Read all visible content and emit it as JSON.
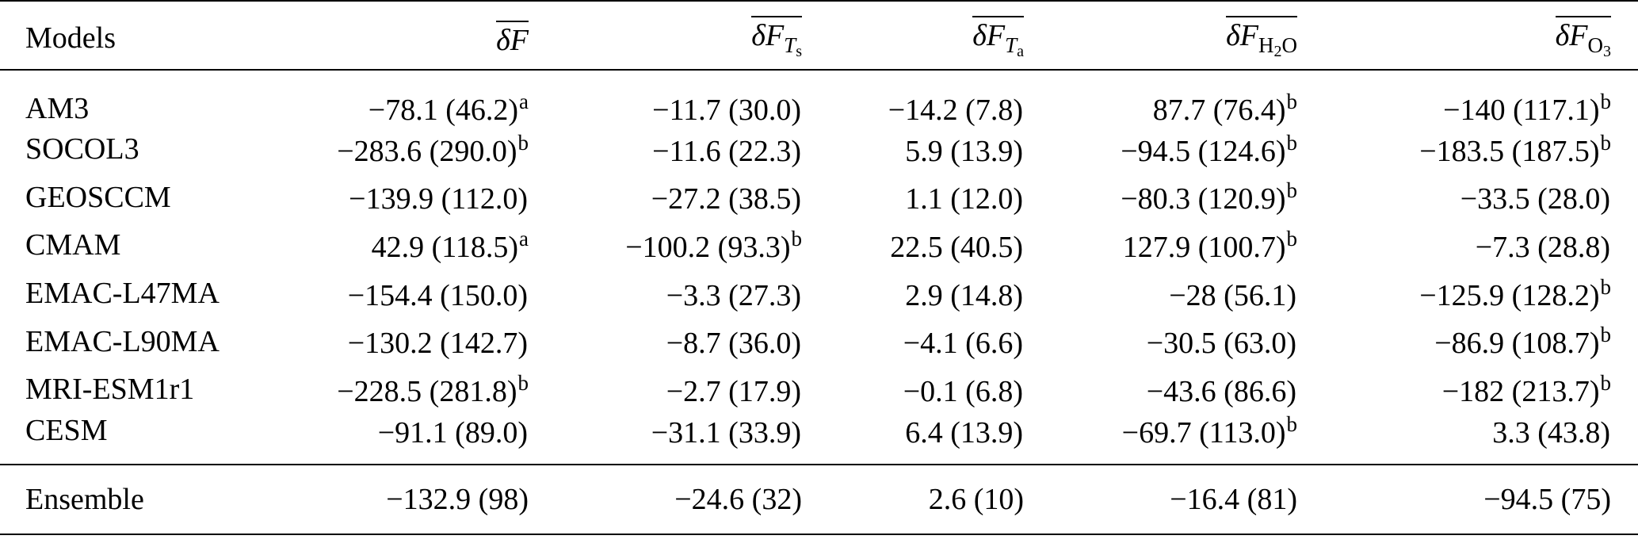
{
  "header": {
    "models_label": "Models",
    "col_F": {
      "delta": "δ",
      "var": "F",
      "sub": ""
    },
    "col_FTs": {
      "delta": "δ",
      "var": "F",
      "sub_var": "T",
      "sub": "s"
    },
    "col_FTa": {
      "delta": "δ",
      "var": "F",
      "sub_var": "T",
      "sub": "a"
    },
    "col_FH2O": {
      "delta": "δ",
      "var": "F",
      "sub": "H",
      "sub2": "2",
      "sub3": "O"
    },
    "col_FO3": {
      "delta": "δ",
      "var": "F",
      "sub": "O",
      "sub2": "3"
    }
  },
  "rows": [
    {
      "model": "AM3",
      "F": "−78.1 (46.2)",
      "F_sup": "a",
      "FTs": "−11.7 (30.0)",
      "FTs_sup": "",
      "FTa": "−14.2 (7.8)",
      "FTa_sup": "",
      "FH2O": "87.7 (76.4)",
      "FH2O_sup": "b",
      "FO3": "−140 (117.1)",
      "FO3_sup": "b"
    },
    {
      "model": "SOCOL3",
      "F": "−283.6 (290.0)",
      "F_sup": "b",
      "FTs": "−11.6 (22.3)",
      "FTs_sup": "",
      "FTa": "5.9 (13.9)",
      "FTa_sup": "",
      "FH2O": "−94.5 (124.6)",
      "FH2O_sup": "b",
      "FO3": "−183.5 (187.5)",
      "FO3_sup": "b"
    },
    {
      "model": "GEOSCCM",
      "F": "−139.9 (112.0)",
      "F_sup": "",
      "FTs": "−27.2 (38.5)",
      "FTs_sup": "",
      "FTa": "1.1 (12.0)",
      "FTa_sup": "",
      "FH2O": "−80.3 (120.9)",
      "FH2O_sup": "b",
      "FO3": "−33.5 (28.0)",
      "FO3_sup": ""
    },
    {
      "model": "CMAM",
      "F": "42.9 (118.5)",
      "F_sup": "a",
      "FTs": "−100.2 (93.3)",
      "FTs_sup": "b",
      "FTa": "22.5 (40.5)",
      "FTa_sup": "",
      "FH2O": "127.9 (100.7)",
      "FH2O_sup": "b",
      "FO3": "−7.3 (28.8)",
      "FO3_sup": ""
    },
    {
      "model": "EMAC-L47MA",
      "F": "−154.4 (150.0)",
      "F_sup": "",
      "FTs": "−3.3 (27.3)",
      "FTs_sup": "",
      "FTa": "2.9 (14.8)",
      "FTa_sup": "",
      "FH2O": "−28 (56.1)",
      "FH2O_sup": "",
      "FO3": "−125.9 (128.2)",
      "FO3_sup": "b"
    },
    {
      "model": "EMAC-L90MA",
      "F": "−130.2 (142.7)",
      "F_sup": "",
      "FTs": "−8.7 (36.0)",
      "FTs_sup": "",
      "FTa": "−4.1 (6.6)",
      "FTa_sup": "",
      "FH2O": "−30.5 (63.0)",
      "FH2O_sup": "",
      "FO3": "−86.9 (108.7)",
      "FO3_sup": "b"
    },
    {
      "model": "MRI-ESM1r1",
      "F": "−228.5 (281.8)",
      "F_sup": "b",
      "FTs": "−2.7 (17.9)",
      "FTs_sup": "",
      "FTa": "−0.1 (6.8)",
      "FTa_sup": "",
      "FH2O": "−43.6 (86.6)",
      "FH2O_sup": "",
      "FO3": "−182 (213.7)",
      "FO3_sup": "b"
    },
    {
      "model": "CESM",
      "F": "−91.1 (89.0)",
      "F_sup": "",
      "FTs": "−31.1 (33.9)",
      "FTs_sup": "",
      "FTa": "6.4 (13.9)",
      "FTa_sup": "",
      "FH2O": "−69.7 (113.0)",
      "FH2O_sup": "b",
      "FO3": "3.3 (43.8)",
      "FO3_sup": ""
    }
  ],
  "ensemble": {
    "model": "Ensemble",
    "F": "−132.9 (98)",
    "FTs": "−24.6 (32)",
    "FTa": "2.6 (10)",
    "FH2O": "−16.4 (81)",
    "FO3": "−94.5 (75)"
  }
}
